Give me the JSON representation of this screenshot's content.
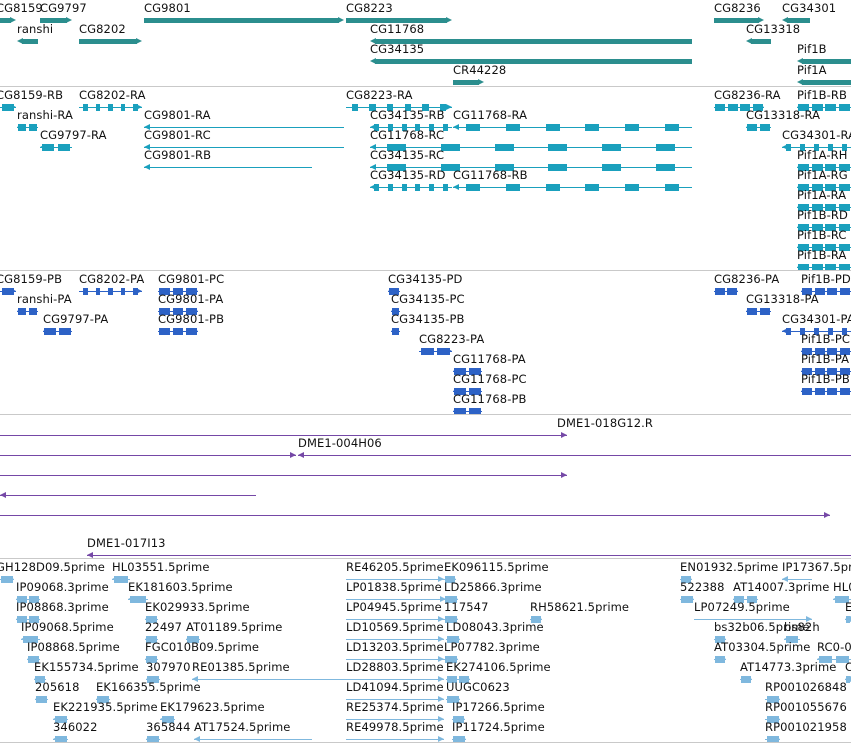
{
  "colors": {
    "gene": "#2b8e8e",
    "mrna": "#1aa0bd",
    "cds": "#2d62c6",
    "clone": "#7548a6",
    "est": "#7fb8de",
    "label": "#111111",
    "divider": "#c9c9c9"
  },
  "tracks": [
    {
      "name": "genes",
      "color": "gene",
      "features": [
        {
          "label": "CG8159",
          "glyphs": [
            {
              "kind": "bar",
              "dir": "r"
            }
          ]
        },
        {
          "label": "CG9797",
          "glyphs": [
            {
              "kind": "bar",
              "dir": "r"
            }
          ]
        },
        {
          "label": "CG9801",
          "glyphs": [
            {
              "kind": "bar",
              "dir": "r"
            }
          ]
        },
        {
          "label": "CG8223",
          "glyphs": [
            {
              "kind": "bar",
              "dir": "r"
            }
          ]
        },
        {
          "label": "CG8236",
          "glyphs": [
            {
              "kind": "bar",
              "dir": "r"
            }
          ]
        },
        {
          "label": "CG34301",
          "glyphs": [
            {
              "kind": "bar",
              "dir": "l"
            }
          ]
        },
        {
          "label": "ranshi",
          "glyphs": [
            {
              "kind": "bar",
              "dir": "l"
            }
          ]
        },
        {
          "label": "CG8202",
          "glyphs": [
            {
              "kind": "bar",
              "dir": "r"
            }
          ]
        },
        {
          "label": "CG11768",
          "glyphs": [
            {
              "kind": "bar",
              "dir": "l"
            }
          ]
        },
        {
          "label": "CG13318",
          "glyphs": [
            {
              "kind": "bar",
              "dir": "l"
            }
          ]
        },
        {
          "label": "CG34135",
          "glyphs": [
            {
              "kind": "bar",
              "dir": "l"
            }
          ]
        },
        {
          "label": "Pif1B",
          "glyphs": [
            {
              "kind": "bar",
              "dir": "l"
            }
          ]
        },
        {
          "label": "CR44228",
          "glyphs": [
            {
              "kind": "bar",
              "dir": "r"
            }
          ]
        },
        {
          "label": "Pif1A",
          "glyphs": [
            {
              "kind": "bar",
              "dir": "l"
            }
          ]
        }
      ]
    },
    {
      "name": "transcripts",
      "color": "mrna",
      "features": [
        {
          "label": "CG8159-RB"
        },
        {
          "label": "CG8202-RA"
        },
        {
          "label": "CG8223-RA"
        },
        {
          "label": "CG8236-RA"
        },
        {
          "label": "Pif1B-RB"
        },
        {
          "label": "ranshi-RA"
        },
        {
          "label": "CG9801-RA"
        },
        {
          "label": "CG34135-RB"
        },
        {
          "label": "CG11768-RA"
        },
        {
          "label": "CG13318-RA"
        },
        {
          "label": "CG9797-RA"
        },
        {
          "label": "CG9801-RC"
        },
        {
          "label": "CG11768-RC"
        },
        {
          "label": "CG34301-RA"
        },
        {
          "label": "CG9801-RB"
        },
        {
          "label": "CG34135-RC"
        },
        {
          "label": "Pif1A-RH"
        },
        {
          "label": "CG34135-RD"
        },
        {
          "label": "CG11768-RB"
        },
        {
          "label": "Pif1A-RG"
        },
        {
          "label": "Pif1A-RA"
        },
        {
          "label": "Pif1B-RD"
        },
        {
          "label": "Pif1B-RC"
        },
        {
          "label": "Pif1B-RA"
        }
      ]
    },
    {
      "name": "cds",
      "color": "cds",
      "features": [
        {
          "label": "CG8159-PB"
        },
        {
          "label": "CG8202-PA"
        },
        {
          "label": "CG9801-PC"
        },
        {
          "label": "CG34135-PD"
        },
        {
          "label": "CG8236-PA"
        },
        {
          "label": "Pif1B-PD"
        },
        {
          "label": "ranshi-PA"
        },
        {
          "label": "CG9801-PA"
        },
        {
          "label": "CG34135-PC"
        },
        {
          "label": "CG13318-PA"
        },
        {
          "label": "CG9797-PA"
        },
        {
          "label": "CG9801-PB"
        },
        {
          "label": "CG34135-PB"
        },
        {
          "label": "CG34301-PA"
        },
        {
          "label": "CG8223-PA"
        },
        {
          "label": "Pif1B-PC"
        },
        {
          "label": "CG11768-PA"
        },
        {
          "label": "Pif1B-PA"
        },
        {
          "label": "CG11768-PC"
        },
        {
          "label": "Pif1B-PB"
        },
        {
          "label": "CG11768-PB"
        }
      ]
    },
    {
      "name": "clones",
      "color": "clone",
      "features": [
        {
          "label": "DME1-018G12.R"
        },
        {
          "label": "DME1-004H06"
        },
        {
          "label": ""
        },
        {
          "label": ""
        },
        {
          "label": ""
        },
        {
          "label": "DME1-017I13"
        }
      ]
    },
    {
      "name": "ests",
      "color": "est",
      "features": [
        {
          "label": "GH128D09.5prime"
        },
        {
          "label": "HL03551.5prime"
        },
        {
          "label": "RE46205.5prime"
        },
        {
          "label": "EK096115.5prime"
        },
        {
          "label": "EN01932.5prime"
        },
        {
          "label": "IP17367.5prime"
        },
        {
          "label": "IP09068.3prime"
        },
        {
          "label": "EK181603.5prime"
        },
        {
          "label": "LP01838.5prime"
        },
        {
          "label": "LD25866.3prime"
        },
        {
          "label": "522388"
        },
        {
          "label": "AT14007.3prime"
        },
        {
          "label": "HL0"
        },
        {
          "label": "IP08868.3prime"
        },
        {
          "label": "EK029933.5prime"
        },
        {
          "label": "LP04945.5prime"
        },
        {
          "label": "117547"
        },
        {
          "label": "RH58621.5prime"
        },
        {
          "label": "LP07249.5prime"
        },
        {
          "label": "E"
        },
        {
          "label": "IP09068.5prime"
        },
        {
          "label": "22497"
        },
        {
          "label": "AT01189.5prime"
        },
        {
          "label": "LD10569.5prime"
        },
        {
          "label": "LD08043.3prime"
        },
        {
          "label": "bs32b06.5prime"
        },
        {
          "label": "bs82h"
        },
        {
          "label": "IP08868.5prime"
        },
        {
          "label": "FGC010B09.5prime"
        },
        {
          "label": "LD13203.5prime"
        },
        {
          "label": "LP07782.3prime"
        },
        {
          "label": "AT03304.5prime"
        },
        {
          "label": "RC0-0"
        },
        {
          "label": "EK155734.5prime"
        },
        {
          "label": "307970"
        },
        {
          "label": "RE01385.5prime"
        },
        {
          "label": "LD28803.5prime"
        },
        {
          "label": "EK274106.5prime"
        },
        {
          "label": "AT14773.3prime"
        },
        {
          "label": "C"
        },
        {
          "label": "205618"
        },
        {
          "label": "EK166355.5prime"
        },
        {
          "label": "LD41094.5prime"
        },
        {
          "label": "UUGC0623"
        },
        {
          "label": "RP001026848"
        },
        {
          "label": "EK221935.5prime"
        },
        {
          "label": "EK179623.5prime"
        },
        {
          "label": "RE25374.5prime"
        },
        {
          "label": "IP17266.5prime"
        },
        {
          "label": "RP001055676"
        },
        {
          "label": "346022"
        },
        {
          "label": "365844"
        },
        {
          "label": "AT17524.5prime"
        },
        {
          "label": "RE49978.5prime"
        },
        {
          "label": "IP11724.5prime"
        },
        {
          "label": "RP001021958"
        }
      ]
    }
  ]
}
